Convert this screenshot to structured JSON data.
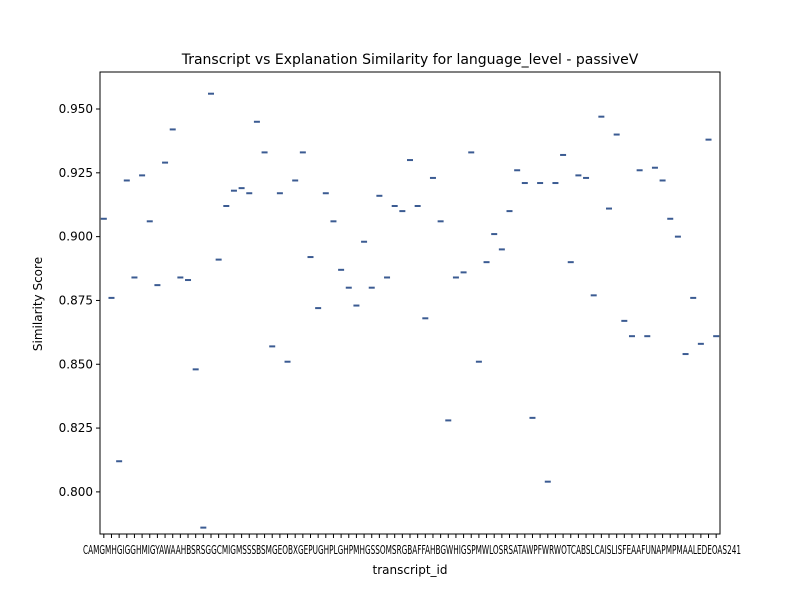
{
  "chart_data": {
    "type": "box",
    "title": "Transcript vs Explanation Similarity for language_level - passiveV",
    "xlabel": "transcript_id",
    "ylabel": "Similarity Score",
    "ylim": [
      0.7835,
      0.9645
    ],
    "yticks": [
      0.8,
      0.825,
      0.85,
      0.875,
      0.9,
      0.925,
      0.95
    ],
    "ytick_labels": [
      "0.800",
      "0.825",
      "0.850",
      "0.875",
      "0.900",
      "0.925",
      "0.950"
    ],
    "xtick_label_overlap_text": "CAMGMHGIGGHMIGYAWAAHBSRSGGCMIGMSSSBSMGEOBXGEPUGHPLGHPMHGSSOMSRGBAFFAHBGWHIGSPMWLOSRSATAWPFWRWOTCABSLCAISLISFEAAFUNAPMPMAALEDEOAS241",
    "grid": false,
    "legend": "none",
    "series_color": "#3b5b92",
    "values": [
      0.907,
      0.876,
      0.812,
      0.922,
      0.884,
      0.924,
      0.906,
      0.881,
      0.929,
      0.942,
      0.884,
      0.883,
      0.848,
      0.786,
      0.956,
      0.891,
      0.912,
      0.918,
      0.919,
      0.917,
      0.945,
      0.933,
      0.857,
      0.917,
      0.851,
      0.922,
      0.933,
      0.892,
      0.872,
      0.917,
      0.906,
      0.887,
      0.88,
      0.873,
      0.898,
      0.88,
      0.916,
      0.884,
      0.912,
      0.91,
      0.93,
      0.912,
      0.868,
      0.923,
      0.906,
      0.828,
      0.884,
      0.886,
      0.933,
      0.851,
      0.89,
      0.901,
      0.895,
      0.91,
      0.926,
      0.921,
      0.829,
      0.921,
      0.804,
      0.921,
      0.932,
      0.89,
      0.924,
      0.923,
      0.877,
      0.947,
      0.911,
      0.94,
      0.867,
      0.861,
      0.926,
      0.861,
      0.927,
      0.922,
      0.907,
      0.9,
      0.854,
      0.876,
      0.858,
      0.938,
      0.861
    ]
  }
}
